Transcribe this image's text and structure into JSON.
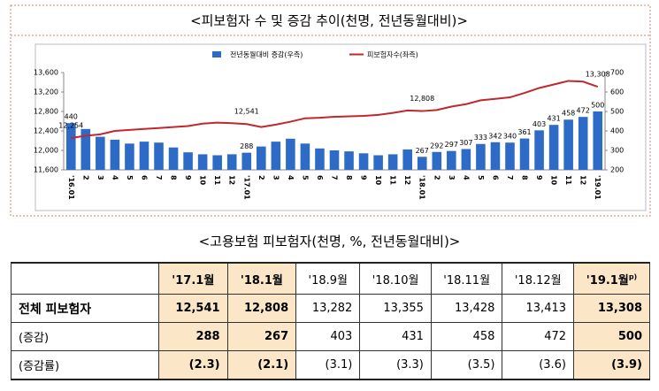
{
  "chart_data": {
    "type": "bar-line",
    "title": "<피보험자 수 및 증감 추이(천명, 전년동월대비)>",
    "categories": [
      "'16.01",
      "2",
      "3",
      "4",
      "5",
      "6",
      "7",
      "8",
      "9",
      "10",
      "11",
      "12",
      "'17.01",
      "2",
      "3",
      "4",
      "5",
      "6",
      "7",
      "8",
      "9",
      "10",
      "11",
      "12",
      "'18.01",
      "2",
      "3",
      "4",
      "5",
      "6",
      "7",
      "8",
      "9",
      "10",
      "11",
      "12",
      "'19.01"
    ],
    "series": [
      {
        "name": "전년동월대비 증감(우측)",
        "color": "#2e6bc6",
        "axis": "y2",
        "values": [
          440,
          410,
          370,
          355,
          335,
          345,
          340,
          315,
          290,
          280,
          275,
          280,
          288,
          320,
          345,
          360,
          335,
          310,
          300,
          295,
          285,
          275,
          280,
          305,
          267,
          292,
          297,
          307,
          333,
          342,
          340,
          361,
          403,
          431,
          458,
          472,
          500
        ],
        "value_labels": [
          "440",
          null,
          null,
          null,
          null,
          null,
          null,
          null,
          null,
          null,
          null,
          null,
          "288",
          null,
          null,
          null,
          null,
          null,
          null,
          null,
          null,
          null,
          null,
          null,
          "267",
          "292",
          "297",
          "307",
          "333",
          "342",
          "340",
          "361",
          "403",
          "431",
          "458",
          "472",
          "500"
        ]
      },
      {
        "name": "피보험자수(좌측)",
        "color": "#c0282d",
        "values": [
          12254,
          12300,
          12330,
          12400,
          12420,
          12440,
          12460,
          12480,
          12500,
          12550,
          12570,
          12560,
          12541,
          12480,
          12530,
          12590,
          12660,
          12670,
          12690,
          12700,
          12710,
          12730,
          12770,
          12820,
          12808,
          12830,
          12900,
          12950,
          13030,
          13060,
          13090,
          13180,
          13282,
          13355,
          13428,
          13413,
          13308
        ],
        "value_labels": [
          "12,254",
          null,
          null,
          null,
          null,
          null,
          null,
          null,
          null,
          null,
          null,
          null,
          "12,541",
          null,
          null,
          null,
          null,
          null,
          null,
          null,
          null,
          null,
          null,
          null,
          "12,808",
          null,
          null,
          null,
          null,
          null,
          null,
          null,
          null,
          null,
          null,
          null,
          "13,308"
        ]
      }
    ],
    "ylim": [
      11600,
      13600
    ],
    "yticks": [
      {
        "value": 11600,
        "label": "11,600"
      },
      {
        "value": 12000,
        "label": "12,000"
      },
      {
        "value": 12400,
        "label": "12,400"
      },
      {
        "value": 12800,
        "label": "12,800"
      },
      {
        "value": 13200,
        "label": "13,200"
      },
      {
        "value": 13600,
        "label": "13,600"
      }
    ],
    "y2lim": [
      200,
      700
    ],
    "y2ticks": [
      200,
      300,
      400,
      500,
      600,
      700
    ],
    "legend": "top"
  },
  "table": {
    "title": "<고용보험 피보험자(천명, %, 전년동월대비)>",
    "header": [
      "",
      "'17.1월",
      "'18.1월",
      "'18.9월",
      "'18.10월",
      "'18.11월",
      "'18.12월",
      "'19.1월"
    ],
    "header_note": "p)",
    "rows": [
      [
        "전체 피보험자",
        "12,541",
        "12,808",
        "13,282",
        "13,355",
        "13,428",
        "13,413",
        "13,308"
      ],
      [
        "(증감)",
        "288",
        "267",
        "403",
        "431",
        "458",
        "472",
        "500"
      ],
      [
        "(증감률)",
        "(2.3)",
        "(2.1)",
        "(3.1)",
        "(3.3)",
        "(3.5)",
        "(3.6)",
        "(3.9)"
      ]
    ]
  }
}
